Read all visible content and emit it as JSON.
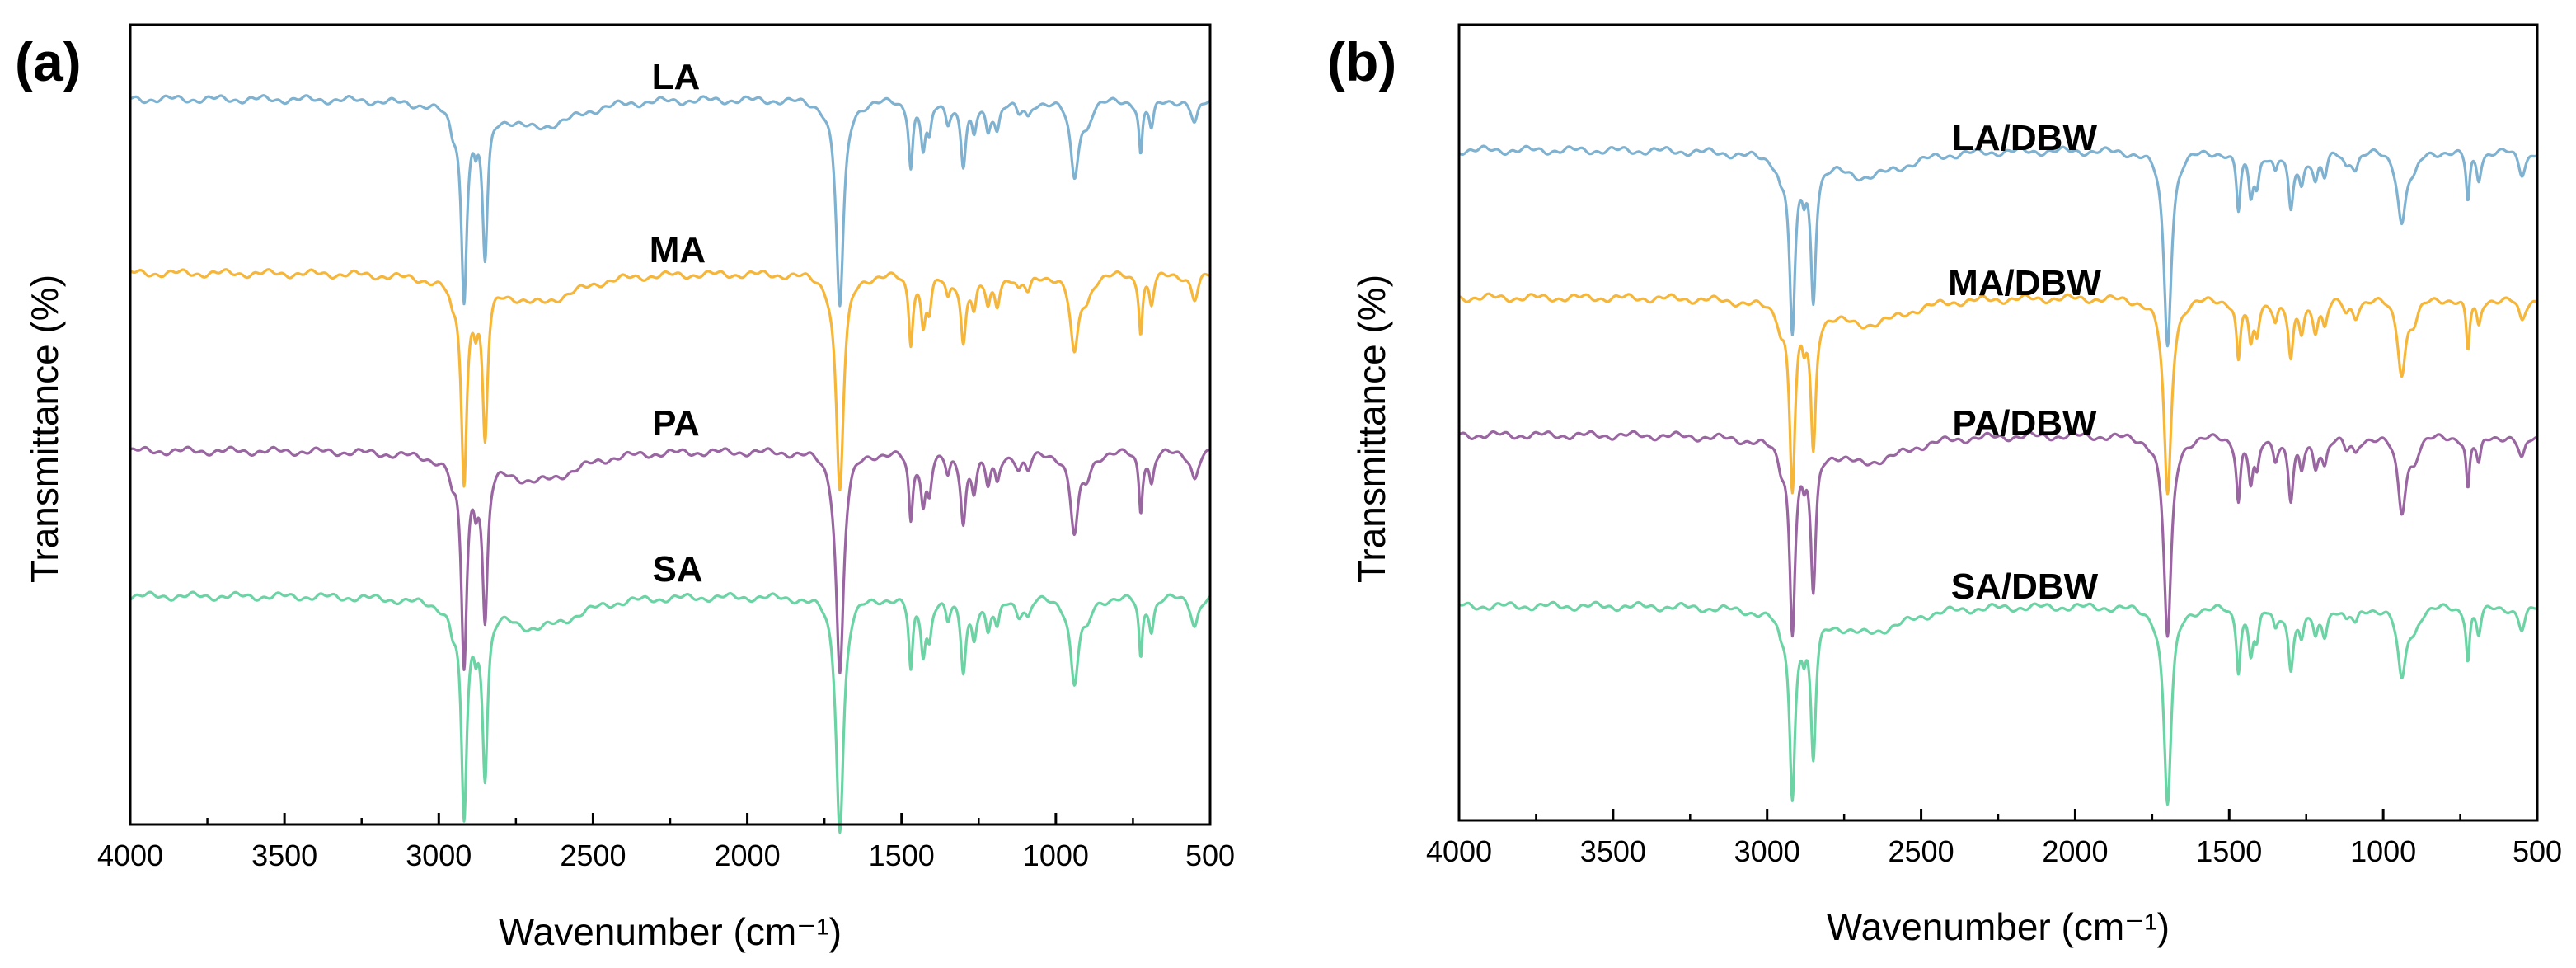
{
  "chart_data": [
    {
      "type": "line",
      "panel_label": "(a)",
      "xlabel": "Wavenumber (cm⁻¹)",
      "ylabel": "Transmittance (%)",
      "xlim": [
        4000,
        500
      ],
      "x_ticks": [
        "4000",
        "3500",
        "3000",
        "2500",
        "2000",
        "1500",
        "1000",
        "500"
      ],
      "series": [
        {
          "name": "LA",
          "color": "#7fb2d0",
          "baseline": 0.0,
          "depth_scale": 0.75
        },
        {
          "name": "MA",
          "color": "#f5b63a",
          "baseline": 0.24,
          "depth_scale": 0.78
        },
        {
          "name": "PA",
          "color": "#9a66a2",
          "baseline": 0.485,
          "depth_scale": 0.8
        },
        {
          "name": "SA",
          "color": "#6cd3a5",
          "baseline": 0.685,
          "depth_scale": 0.84
        }
      ]
    },
    {
      "type": "line",
      "panel_label": "(b)",
      "xlabel": "Wavenumber (cm⁻¹)",
      "ylabel": "Transmittance (%)",
      "xlim": [
        4000,
        500
      ],
      "x_ticks": [
        "4000",
        "3500",
        "3000",
        "2500",
        "2000",
        "1500",
        "1000",
        "500"
      ],
      "series": [
        {
          "name": "LA/DBW",
          "color": "#7fb2d0",
          "baseline": 0.0,
          "depth_scale": 0.68
        },
        {
          "name": "MA/DBW",
          "color": "#f5b63a",
          "baseline": 0.22,
          "depth_scale": 0.7
        },
        {
          "name": "PA/DBW",
          "color": "#9a66a2",
          "baseline": 0.425,
          "depth_scale": 0.72
        },
        {
          "name": "SA/DBW",
          "color": "#6cd3a5",
          "baseline": 0.68,
          "depth_scale": 0.7
        }
      ]
    }
  ],
  "spectrum_peaks": [
    {
      "x": 2955,
      "depth": 0.05,
      "width": 12
    },
    {
      "x": 2918,
      "depth": 0.6,
      "width": 11
    },
    {
      "x": 2880,
      "depth": 0.08,
      "width": 8
    },
    {
      "x": 2850,
      "depth": 0.46,
      "width": 10
    },
    {
      "x": 2700,
      "depth": 0.05,
      "width": 90
    },
    {
      "x": 2600,
      "depth": 0.035,
      "width": 110
    },
    {
      "x": 1700,
      "depth": 0.66,
      "width": 15
    },
    {
      "x": 1470,
      "depth": 0.2,
      "width": 8
    },
    {
      "x": 1430,
      "depth": 0.14,
      "width": 9
    },
    {
      "x": 1410,
      "depth": 0.1,
      "width": 9
    },
    {
      "x": 1350,
      "depth": 0.06,
      "width": 9
    },
    {
      "x": 1300,
      "depth": 0.2,
      "width": 10
    },
    {
      "x": 1265,
      "depth": 0.1,
      "width": 10
    },
    {
      "x": 1220,
      "depth": 0.09,
      "width": 10
    },
    {
      "x": 1190,
      "depth": 0.08,
      "width": 10
    },
    {
      "x": 1120,
      "depth": 0.04,
      "width": 12
    },
    {
      "x": 1090,
      "depth": 0.05,
      "width": 12
    },
    {
      "x": 940,
      "depth": 0.24,
      "width": 16
    },
    {
      "x": 900,
      "depth": 0.06,
      "width": 18
    },
    {
      "x": 725,
      "depth": 0.17,
      "width": 7
    },
    {
      "x": 690,
      "depth": 0.09,
      "width": 9
    },
    {
      "x": 550,
      "depth": 0.08,
      "width": 14
    }
  ]
}
